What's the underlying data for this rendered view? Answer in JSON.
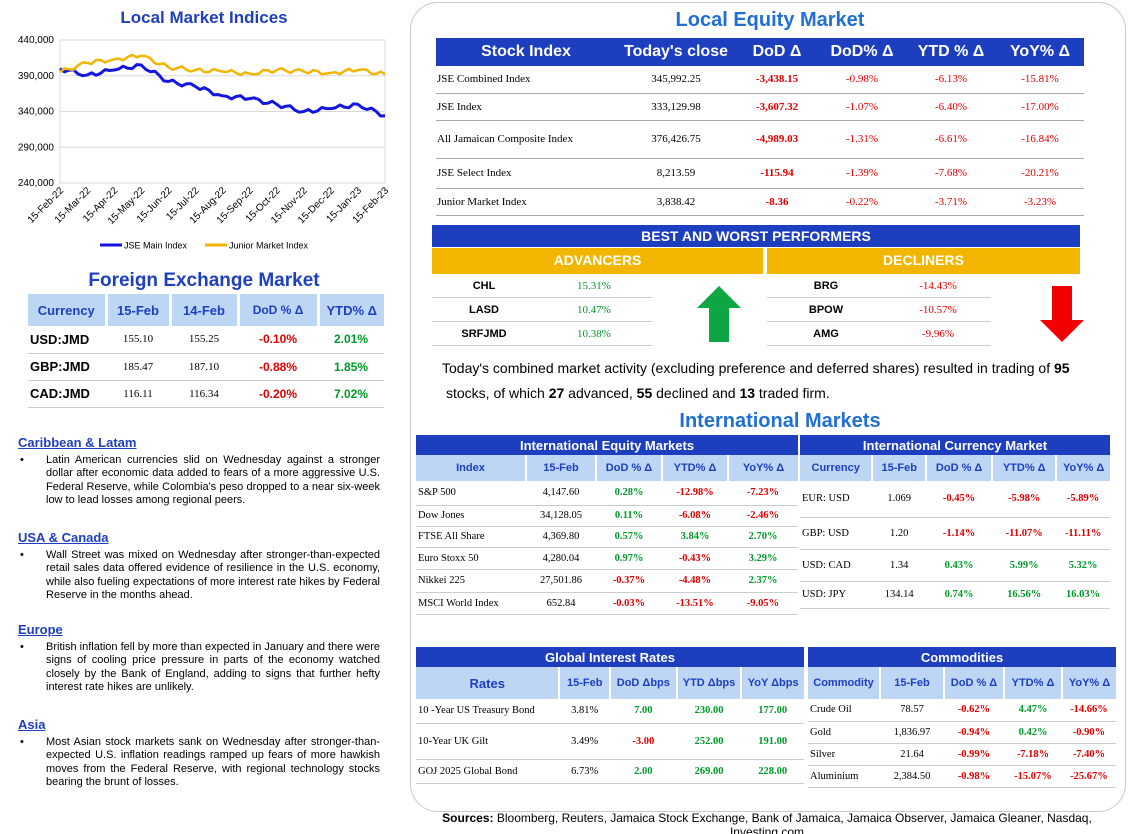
{
  "local_indices": {
    "title": "Local Market Indices"
  },
  "chart_data": {
    "type": "line",
    "x": [
      "15-Feb-22",
      "15-Mar-22",
      "15-Apr-22",
      "15-May-22",
      "15-Jun-22",
      "15-Jul-22",
      "15-Aug-22",
      "15-Sep-22",
      "15-Oct-22",
      "15-Nov-22",
      "15-Dec-22",
      "15-Jan-23",
      "15-Feb-23"
    ],
    "series": [
      {
        "name": "JSE Main Index",
        "color": "#1515e0",
        "values": [
          400000,
          391000,
          398000,
          405000,
          382000,
          375000,
          362000,
          358000,
          350000,
          340000,
          344000,
          350000,
          334000
        ]
      },
      {
        "name": "Junior Market Index",
        "color": "#f2b600",
        "values": [
          395000,
          408000,
          413000,
          418000,
          402000,
          398000,
          396000,
          393000,
          398000,
          396000,
          394000,
          398000,
          392000
        ]
      }
    ],
    "y_ticks": [
      "440,000",
      "390,000",
      "340,000",
      "290,000",
      "240,000"
    ],
    "ylim": [
      240000,
      440000
    ],
    "grid": true,
    "legend": "bottom"
  },
  "fx": {
    "title": "Foreign Exchange Market",
    "headers": [
      "Currency",
      "15-Feb",
      "14-Feb",
      "DoD % Δ",
      "YTD% Δ"
    ],
    "rows": [
      {
        "cur": "USD:JMD",
        "a": "155.10",
        "b": "155.25",
        "dod": "-0.10%",
        "ytd": "2.01%"
      },
      {
        "cur": "GBP:JMD",
        "a": "185.47",
        "b": "187.10",
        "dod": "-0.88%",
        "ytd": "1.85%"
      },
      {
        "cur": "CAD:JMD",
        "a": "116.11",
        "b": "116.34",
        "dod": "-0.20%",
        "ytd": "7.02%"
      }
    ]
  },
  "news": [
    {
      "heading": "Caribbean & Latam",
      "bullet": "•",
      "text": "Latin American currencies slid on Wednesday against a stronger dollar after economic data added to fears of a more aggressive U.S. Federal Reserve, while Colombia's peso dropped to a near six-week low to lead losses among regional peers."
    },
    {
      "heading": "USA & Canada",
      "bullet": "•",
      "text": "Wall Street was mixed on Wednesday after stronger-than-expected retail sales data offered evidence of resilience in the U.S. economy, while also fueling expectations of more interest rate hikes by Federal Reserve in the months ahead."
    },
    {
      "heading": "Europe",
      "bullet": "•",
      "text": "British inflation fell by more than expected in January and there were signs of cooling price pressure in parts of the economy watched closely by the Bank of England, adding to signs that further hefty interest rate hikes are unlikely."
    },
    {
      "heading": "Asia",
      "bullet": "•",
      "text": "Most Asian stock markets sank on Wednesday after stronger-than-expected U.S. inflation readings ramped up fears of more hawkish moves from the Federal Reserve, with regional technology stocks bearing the brunt of losses."
    }
  ],
  "equity": {
    "title": "Local Equity Market",
    "headers": [
      "Stock Index",
      "Today's close",
      "DoD  Δ",
      "DoD% Δ",
      "YTD % Δ",
      "YoY% Δ"
    ],
    "rows": [
      {
        "name": "JSE Combined Index",
        "close": "345,992.25",
        "dod": "-3,438.15",
        "dodp": "-0.98%",
        "ytd": "-6.13%",
        "yoy": "-15.81%"
      },
      {
        "name": "JSE Index",
        "close": "333,129.98",
        "dod": "-3,607.32",
        "dodp": "-1.07%",
        "ytd": "-6.40%",
        "yoy": "-17.00%"
      },
      {
        "name": "All Jamaican Composite Index",
        "close": "376,426.75",
        "dod": "-4,989.03",
        "dodp": "-1.31%",
        "ytd": "-6.61%",
        "yoy": "-16.84%"
      },
      {
        "name": "JSE Select Index",
        "close": "8,213.59",
        "dod": "-115.94",
        "dodp": "-1.39%",
        "ytd": "-7.68%",
        "yoy": "-20.21%"
      },
      {
        "name": "Junior Market Index",
        "close": "3,838.42",
        "dod": "-8.36",
        "dodp": "-0.22%",
        "ytd": "-3.71%",
        "yoy": "-3.23%"
      }
    ]
  },
  "performers": {
    "title": "BEST AND WORST PERFORMERS",
    "advancers_label": "ADVANCERS",
    "decliners_label": "DECLINERS",
    "advancers": [
      {
        "ticker": "CHL",
        "pct": "15.31%"
      },
      {
        "ticker": "LASD",
        "pct": "10.47%"
      },
      {
        "ticker": "SRFJMD",
        "pct": "10.38%"
      }
    ],
    "decliners": [
      {
        "ticker": "BRG",
        "pct": "-14.43%"
      },
      {
        "ticker": "BPOW",
        "pct": "-10.57%"
      },
      {
        "ticker": "AMG",
        "pct": "-9.96%"
      }
    ],
    "up_color": "#0ea642",
    "down_color": "#f20000"
  },
  "activity": {
    "p1": "Today's combined market activity (excluding preference and deferred shares) resulted in trading of ",
    "n1": "95",
    "p2": "stocks, of which ",
    "n2": "27",
    "p3": " advanced, ",
    "n3": "55",
    "p4": " declined and ",
    "n4": "13",
    "p5": " traded firm."
  },
  "international": {
    "title": "International Markets",
    "equity": {
      "title": "International Equity Markets",
      "headers": [
        "Index",
        "15-Feb",
        "DoD % Δ",
        "YTD% Δ",
        "YoY% Δ"
      ],
      "rows": [
        {
          "name": "S&P 500",
          "v": "4,147.60",
          "dod": "0.28%",
          "ytd": "-12.98%",
          "yoy": "-7.23%"
        },
        {
          "name": "Dow Jones",
          "v": "34,128.05",
          "dod": "0.11%",
          "ytd": "-6.08%",
          "yoy": "-2.46%"
        },
        {
          "name": "FTSE All Share",
          "v": "4,369.80",
          "dod": "0.57%",
          "ytd": "3.84%",
          "yoy": "2.70%"
        },
        {
          "name": "Euro Stoxx 50",
          "v": "4,280.04",
          "dod": "0.97%",
          "ytd": "-0.43%",
          "yoy": "3.29%"
        },
        {
          "name": "Nikkei 225",
          "v": "27,501.86",
          "dod": "-0.37%",
          "ytd": "-4.48%",
          "yoy": "2.37%"
        },
        {
          "name": "MSCI World Index",
          "v": "652.84",
          "dod": "-0.03%",
          "ytd": "-13.51%",
          "yoy": "-9.05%"
        }
      ]
    },
    "currency": {
      "title": "International Currency Market",
      "headers": [
        "Currency",
        "15-Feb",
        "DoD % Δ",
        "YTD% Δ",
        "YoY% Δ"
      ],
      "rows": [
        {
          "name": "EUR: USD",
          "v": "1.069",
          "dod": "-0.45%",
          "ytd": "-5.98%",
          "yoy": "-5.89%"
        },
        {
          "name": "GBP: USD",
          "v": "1.20",
          "dod": "-1.14%",
          "ytd": "-11.07%",
          "yoy": "-11.11%"
        },
        {
          "name": "USD: CAD",
          "v": "1.34",
          "dod": "0.43%",
          "ytd": "5.99%",
          "yoy": "5.32%"
        },
        {
          "name": "USD: JPY",
          "v": "134.14",
          "dod": "0.74%",
          "ytd": "16.56%",
          "yoy": "16.03%"
        }
      ]
    },
    "rates": {
      "title": "Global Interest Rates",
      "headers": [
        "Rates",
        "15-Feb",
        "DoD Δbps",
        "YTD Δbps",
        "YoY Δbps"
      ],
      "rows": [
        {
          "name": "10 -Year US Treasury Bond",
          "v": "3.81%",
          "dod": "7.00",
          "ytd": "230.00",
          "yoy": "177.00"
        },
        {
          "name": "10-Year UK Gilt",
          "v": "3.49%",
          "dod": "-3.00",
          "ytd": "252.00",
          "yoy": "191.00"
        },
        {
          "name": "GOJ 2025 Global Bond",
          "v": "6.73%",
          "dod": "2.00",
          "ytd": "269.00",
          "yoy": "228.00"
        }
      ]
    },
    "commodities": {
      "title": "Commodities",
      "headers": [
        "Commodity",
        "15-Feb",
        "DoD % Δ",
        "YTD% Δ",
        "YoY% Δ"
      ],
      "rows": [
        {
          "name": "Crude Oil",
          "v": "78.57",
          "dod": "-0.62%",
          "ytd": "4.47%",
          "yoy": "-14.66%"
        },
        {
          "name": "Gold",
          "v": "1,836.97",
          "dod": "-0.94%",
          "ytd": "0.42%",
          "yoy": "-0.90%"
        },
        {
          "name": "Silver",
          "v": "21.64",
          "dod": "-0.99%",
          "ytd": "-7.18%",
          "yoy": "-7.40%"
        },
        {
          "name": "Aluminium",
          "v": "2,384.50",
          "dod": "-0.98%",
          "ytd": "-15.07%",
          "yoy": "-25.67%"
        }
      ]
    }
  },
  "sources": {
    "label": "Sources:",
    "text": " Bloomberg, Reuters, Jamaica Stock Exchange, Bank of Jamaica, Jamaica Observer, Jamaica Gleaner, Nasdaq, Investing.com"
  }
}
